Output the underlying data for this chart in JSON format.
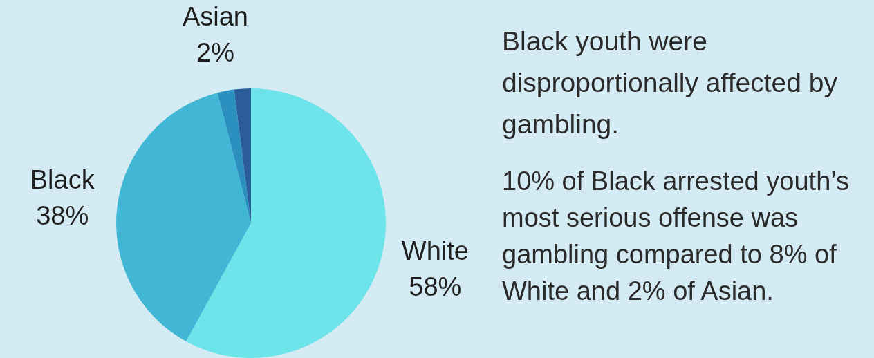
{
  "chart_data": {
    "type": "pie",
    "title": "Black youth were disproportionally affected by gambling.",
    "categories": [
      "White",
      "Black",
      "Asian",
      null
    ],
    "values": [
      58,
      38,
      2,
      2
    ],
    "value_labels": [
      "58%",
      "38%",
      "2%",
      null
    ],
    "colors": [
      "#6ce4ea",
      "#42b7d5",
      "#2b8fc0",
      "#2c5d9b"
    ],
    "legend": false,
    "annotations": [
      "10% of Black arrested youth’s most serious offense was gambling compared to 8% of White and 2% of Asian."
    ]
  }
}
